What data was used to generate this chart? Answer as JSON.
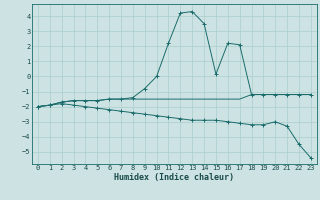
{
  "background_color": "#cde3e3",
  "grid_color": "#aacece",
  "line_color": "#1a6b6b",
  "xlabel": "Humidex (Indice chaleur)",
  "xlim": [
    -0.5,
    23.5
  ],
  "ylim": [
    -5.8,
    4.8
  ],
  "yticks": [
    -5,
    -4,
    -3,
    -2,
    -1,
    0,
    1,
    2,
    3,
    4
  ],
  "xticks": [
    0,
    1,
    2,
    3,
    4,
    5,
    6,
    7,
    8,
    9,
    10,
    11,
    12,
    13,
    14,
    15,
    16,
    17,
    18,
    19,
    20,
    21,
    22,
    23
  ],
  "line1_x": [
    0,
    1,
    2,
    3,
    4,
    5,
    6,
    7,
    8,
    9,
    10,
    11,
    12,
    13,
    14,
    15,
    16,
    17,
    18,
    19,
    20,
    21,
    22,
    23
  ],
  "line1_y": [
    -2.0,
    -1.9,
    -1.7,
    -1.6,
    -1.6,
    -1.6,
    -1.5,
    -1.5,
    -1.4,
    -0.8,
    0.0,
    2.2,
    4.2,
    4.3,
    3.5,
    0.15,
    2.2,
    2.1,
    -1.2,
    -1.2,
    -1.2,
    -1.2,
    -1.2,
    -1.2
  ],
  "line2_x": [
    0,
    1,
    2,
    3,
    4,
    5,
    6,
    7,
    8,
    9,
    10,
    11,
    12,
    13,
    14,
    15,
    16,
    17,
    18,
    19,
    20,
    21,
    22,
    23
  ],
  "line2_y": [
    -2.0,
    -1.9,
    -1.7,
    -1.6,
    -1.6,
    -1.6,
    -1.5,
    -1.5,
    -1.5,
    -1.5,
    -1.5,
    -1.5,
    -1.5,
    -1.5,
    -1.5,
    -1.5,
    -1.5,
    -1.5,
    -1.2,
    -1.2,
    -1.2,
    -1.2,
    -1.2,
    -1.2
  ],
  "line3_x": [
    0,
    1,
    2,
    3,
    4,
    5,
    6,
    7,
    8,
    9,
    10,
    11,
    12,
    13,
    14,
    15,
    16,
    17,
    18,
    19,
    20,
    21,
    22,
    23
  ],
  "line3_y": [
    -2.0,
    -1.9,
    -1.8,
    -1.9,
    -2.0,
    -2.1,
    -2.2,
    -2.3,
    -2.4,
    -2.5,
    -2.6,
    -2.7,
    -2.8,
    -2.9,
    -2.9,
    -2.9,
    -3.0,
    -3.1,
    -3.2,
    -3.2,
    -3.0,
    -3.3,
    -4.5,
    -5.4
  ]
}
